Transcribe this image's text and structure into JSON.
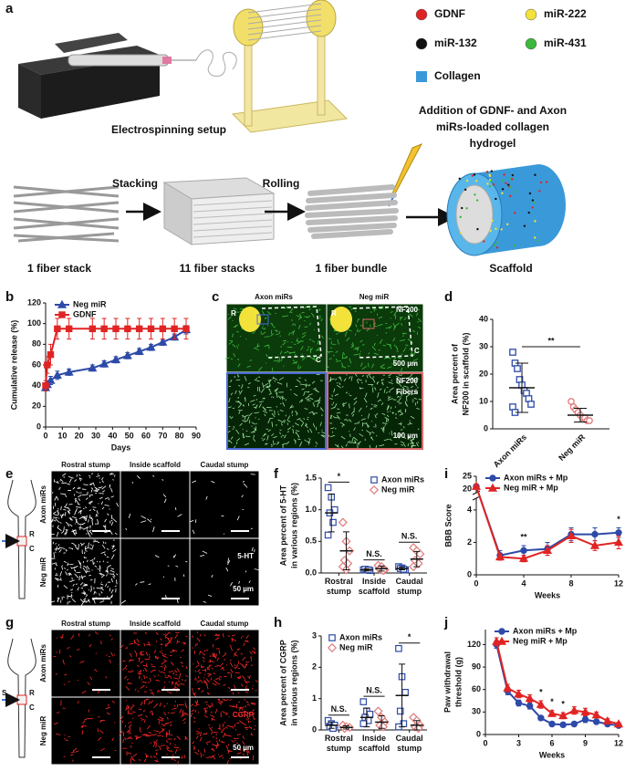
{
  "figure": {
    "panel_a": {
      "label": "a",
      "legend": [
        {
          "name": "GDNF",
          "color": "#e02424"
        },
        {
          "name": "miR-222",
          "color": "#f2e23a"
        },
        {
          "name": "miR-132",
          "color": "#111111"
        },
        {
          "name": "miR-431",
          "color": "#3cb83c"
        }
      ],
      "collagen": {
        "name": "Collagen",
        "color": "#3a9ad9"
      },
      "setup": "Electrospinning setup",
      "hydrogel": [
        "Addition of GDNF- and Axon",
        "miRs-loaded collagen",
        "hydrogel"
      ],
      "steps": [
        "Stacking",
        "Rolling"
      ],
      "stages": [
        "1 fiber stack",
        "11 fiber stacks",
        "1 fiber bundle",
        "Scaffold"
      ]
    },
    "panel_c": {
      "label": "c",
      "columns": [
        "Axon miRs",
        "Neg miR"
      ],
      "regions": [
        "R",
        "C"
      ],
      "stain": "NF200",
      "scale_top": "500 µm",
      "fibers": "Fibers",
      "scale_bottom": "100 µm"
    },
    "panel_e": {
      "label": "e",
      "columns": [
        "Rostral stump",
        "Inside scaffold",
        "Caudal stump"
      ],
      "rows": [
        "Axon miRs",
        "Neg miR"
      ],
      "stain": "5-HT",
      "scale": "50 µm",
      "regions": [
        "R",
        "C"
      ]
    },
    "panel_g": {
      "label": "g",
      "columns": [
        "Rostral stump",
        "Inside scaffold",
        "Caudal stump"
      ],
      "rows": [
        "Axon miRs",
        "Neg miR"
      ],
      "stain": "CGRP",
      "scale": "50 µm",
      "regions": [
        "R",
        "S",
        "C"
      ]
    }
  },
  "chart_data": [
    {
      "type": "line",
      "panel": "b",
      "xlabel": "Days",
      "ylabel": [
        "Cumulative release (%)"
      ],
      "xlim": [
        0,
        90
      ],
      "xticks": [
        0,
        10,
        20,
        30,
        40,
        50,
        60,
        70,
        80,
        90
      ],
      "ylim": [
        0,
        120
      ],
      "yticks": [
        0,
        20,
        40,
        60,
        80,
        100,
        120
      ],
      "legend": "upper left",
      "series": [
        {
          "name": "Neg miR",
          "color": "#2e4aa8",
          "marker": "triangle",
          "x": [
            0,
            1,
            3,
            7,
            14,
            28,
            35,
            42,
            49,
            56,
            63,
            70,
            77,
            84
          ],
          "values": [
            38,
            41,
            45,
            50,
            53,
            57,
            61,
            65,
            69,
            73,
            77,
            82,
            87,
            94
          ],
          "errors": [
            3,
            3,
            4,
            4,
            3,
            3,
            3,
            3,
            3,
            3,
            3,
            3,
            3,
            4
          ]
        },
        {
          "name": "GDNF",
          "color": "#e02424",
          "marker": "square",
          "x": [
            0,
            1,
            3,
            7,
            14,
            28,
            35,
            42,
            49,
            56,
            63,
            70,
            77,
            84
          ],
          "values": [
            40,
            60,
            70,
            95,
            95,
            95,
            95,
            95,
            95,
            95,
            95,
            95,
            95,
            95
          ],
          "errors": [
            5,
            8,
            10,
            10,
            10,
            10,
            10,
            10,
            10,
            10,
            10,
            10,
            10,
            10
          ]
        }
      ]
    },
    {
      "type": "dot",
      "panel": "d",
      "ylabel": [
        "Area percent of",
        "NF200 in scaffold (%)"
      ],
      "ylim": [
        0,
        40
      ],
      "yticks": [
        0,
        10,
        20,
        30,
        40
      ],
      "annotation": "**",
      "groups": [
        {
          "name": "Axon miRs",
          "color": "#2e4aa8",
          "marker": "square",
          "values": [
            28,
            24,
            22,
            18,
            16,
            14,
            13,
            11,
            9,
            8,
            6
          ],
          "mean": 15,
          "sd": 9
        },
        {
          "name": "Neg miR",
          "color": "#e07a7a",
          "marker": "circle",
          "values": [
            10,
            8,
            7,
            6,
            5,
            4,
            4,
            3,
            3
          ],
          "mean": 5,
          "sd": 2.5
        }
      ]
    },
    {
      "type": "grouped_dot",
      "panel": "f",
      "ylabel": [
        "Area percent of 5-HT",
        "in various regions (%)"
      ],
      "categories": [
        "Rostral stump",
        "Inside scaffold",
        "Caudal stump"
      ],
      "ylim": [
        0,
        1.5
      ],
      "yticks": [
        {
          "value": 0,
          "label": "0.0"
        },
        0.5,
        {
          "value": 1,
          "label": "1.0"
        },
        1.5
      ],
      "legend": "upper right",
      "annotations": [
        "*",
        "N.S.",
        "N.S."
      ],
      "series": [
        {
          "name": "Axon miRs",
          "color": "#2e4aa8",
          "marker": "square",
          "points": [
            [
              1.35,
              1.2,
              1.0,
              0.95,
              0.8,
              0.6
            ],
            [
              0.05,
              0.05,
              0.04,
              0.06,
              0.05
            ],
            [
              0.1,
              0.08,
              0.05,
              0.07,
              0.06
            ]
          ],
          "means": [
            0.95,
            0.05,
            0.07
          ],
          "sds": [
            0.3,
            0.02,
            0.02
          ]
        },
        {
          "name": "Neg miR",
          "color": "#e07a7a",
          "marker": "diamond",
          "points": [
            [
              0.8,
              0.5,
              0.35,
              0.2,
              0.15,
              0.1,
              0.05
            ],
            [
              0.12,
              0.1,
              0.05,
              0.06,
              0.04
            ],
            [
              0.4,
              0.35,
              0.3,
              0.2,
              0.15,
              0.1
            ]
          ],
          "means": [
            0.35,
            0.07,
            0.22
          ],
          "sds": [
            0.3,
            0.04,
            0.12
          ]
        }
      ]
    },
    {
      "type": "line",
      "panel": "i",
      "xlabel": "Weeks",
      "ylabel": [
        "BBB Score"
      ],
      "x": [
        0,
        2,
        4,
        6,
        8,
        10,
        12
      ],
      "xlim": [
        0,
        12
      ],
      "xticks": [
        0,
        4,
        8,
        12
      ],
      "ylim": [
        0,
        25
      ],
      "ybreak": [
        4.5,
        20
      ],
      "yticks": [
        0,
        2,
        4,
        20,
        25
      ],
      "legend": "upper left",
      "annotations": [
        {
          "text": "**",
          "x": 4
        },
        {
          "text": "*",
          "x": 12
        }
      ],
      "series": [
        {
          "name": "Axon miRs + Mp",
          "color": "#2e4aa8",
          "marker": "circle",
          "values": [
            21,
            1.2,
            1.5,
            1.6,
            2.5,
            2.5,
            2.6
          ],
          "errors": [
            1,
            0.3,
            0.3,
            0.4,
            0.4,
            0.4,
            0.3
          ]
        },
        {
          "name": "Neg miR + Mp",
          "color": "#e02424",
          "marker": "triangle",
          "values": [
            21,
            1.1,
            1.0,
            1.5,
            2.4,
            1.8,
            2.0
          ],
          "errors": [
            1,
            0.2,
            0.2,
            0.3,
            0.4,
            0.3,
            0.4
          ]
        }
      ]
    },
    {
      "type": "grouped_dot",
      "panel": "h",
      "ylabel": [
        "Area percent of CGRP",
        "in various regions (%)"
      ],
      "categories": [
        "Rostral stump",
        "Inside scaffold",
        "Caudal stump"
      ],
      "ylim": [
        0,
        3
      ],
      "yticks": [
        0,
        1,
        2,
        3
      ],
      "legend": "upper left",
      "annotations": [
        "N.S.",
        "N.S.",
        "*"
      ],
      "series": [
        {
          "name": "Axon miRs",
          "color": "#2e4aa8",
          "marker": "square",
          "points": [
            [
              0.3,
              0.2,
              0.15,
              0.1,
              0.05
            ],
            [
              0.9,
              0.6,
              0.5,
              0.4,
              0.3,
              0.2
            ],
            [
              2.6,
              1.7,
              1.2,
              0.6,
              0.2,
              0.1
            ]
          ],
          "means": [
            0.15,
            0.4,
            1.1
          ],
          "sds": [
            0.1,
            0.3,
            1.0
          ]
        },
        {
          "name": "Neg miR",
          "color": "#e07a7a",
          "marker": "diamond",
          "points": [
            [
              0.15,
              0.1,
              0.08,
              0.05
            ],
            [
              0.6,
              0.4,
              0.25,
              0.15,
              0.1
            ],
            [
              0.4,
              0.3,
              0.15,
              0.1,
              0.05
            ]
          ],
          "means": [
            0.08,
            0.25,
            0.15
          ],
          "sds": [
            0.05,
            0.2,
            0.15
          ]
        }
      ]
    },
    {
      "type": "line",
      "panel": "j",
      "xlabel": "Weeks",
      "ylabel": [
        "Paw withdrawal",
        "threshold (g)"
      ],
      "x": [
        1,
        2,
        3,
        4,
        5,
        6,
        7,
        8,
        9,
        10,
        11,
        12
      ],
      "xlim": [
        0,
        12
      ],
      "xticks": [
        0,
        3,
        6,
        9,
        12
      ],
      "ylim": [
        0,
        140
      ],
      "yticks": [
        0,
        30,
        60,
        90,
        120
      ],
      "legend": "upper left",
      "annotations": [
        {
          "text": "*",
          "x": 5
        },
        {
          "text": "*",
          "x": 6
        },
        {
          "text": "*",
          "x": 7
        }
      ],
      "series": [
        {
          "name": "Axon miRs + Mp",
          "color": "#2e4aa8",
          "marker": "circle",
          "values": [
            120,
            58,
            42,
            38,
            22,
            14,
            13,
            14,
            20,
            17,
            14,
            12
          ],
          "errors": [
            5,
            5,
            4,
            4,
            3,
            3,
            3,
            3,
            4,
            3,
            3,
            2
          ]
        },
        {
          "name": "Neg miR + Mp",
          "color": "#e02424",
          "marker": "triangle",
          "values": [
            124,
            62,
            54,
            48,
            40,
            28,
            25,
            32,
            30,
            26,
            18,
            14
          ],
          "errors": [
            5,
            5,
            5,
            5,
            5,
            4,
            4,
            5,
            5,
            4,
            3,
            2
          ]
        }
      ]
    }
  ]
}
